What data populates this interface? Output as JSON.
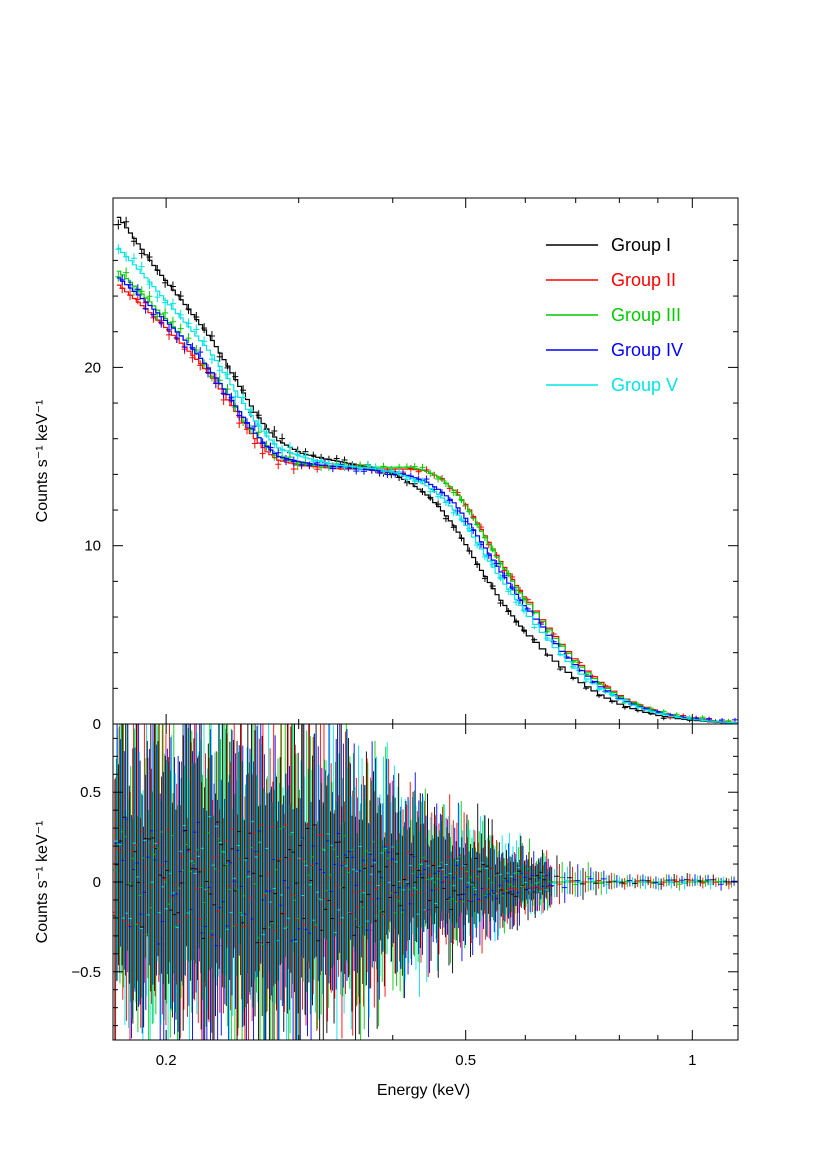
{
  "chart_data": [
    {
      "type": "line",
      "panel": "top",
      "xlabel": "",
      "ylabel": "Counts s⁻¹ keV⁻¹",
      "x_scale": "log",
      "xlim": [
        0.17,
        1.15
      ],
      "ylim": [
        0,
        29.5
      ],
      "y_ticks": [
        0,
        10,
        20
      ],
      "y_tick_labels": [
        "0",
        "10",
        "20"
      ],
      "legend": "top-right",
      "x": [
        0.17,
        0.18,
        0.19,
        0.2,
        0.21,
        0.22,
        0.23,
        0.24,
        0.25,
        0.26,
        0.27,
        0.28,
        0.3,
        0.32,
        0.34,
        0.36,
        0.38,
        0.4,
        0.42,
        0.44,
        0.46,
        0.48,
        0.5,
        0.52,
        0.55,
        0.58,
        0.6,
        0.63,
        0.66,
        0.7,
        0.75,
        0.8,
        0.85,
        0.9,
        0.95,
        1.0,
        1.05,
        1.1,
        1.15
      ],
      "series": [
        {
          "name": "Group I",
          "color": "#000000",
          "values": [
            28.7,
            27.3,
            25.9,
            24.7,
            23.6,
            22.5,
            21.4,
            20.1,
            18.8,
            17.6,
            16.6,
            15.9,
            15.2,
            14.9,
            14.7,
            14.5,
            14.3,
            14.0,
            13.5,
            12.9,
            12.1,
            11.1,
            9.9,
            8.7,
            7.1,
            5.8,
            5.0,
            4.1,
            3.3,
            2.4,
            1.6,
            1.05,
            0.7,
            0.45,
            0.3,
            0.2,
            0.12,
            0.07,
            0.05
          ]
        },
        {
          "name": "Group II",
          "color": "#ff0000",
          "values": [
            24.8,
            23.9,
            23.0,
            22.1,
            21.2,
            20.3,
            19.3,
            18.2,
            17.1,
            16.1,
            15.3,
            14.8,
            14.5,
            14.4,
            14.3,
            14.3,
            14.3,
            14.3,
            14.3,
            14.2,
            13.8,
            13.1,
            12.2,
            11.0,
            9.3,
            7.8,
            6.9,
            5.7,
            4.6,
            3.4,
            2.3,
            1.5,
            1.0,
            0.65,
            0.43,
            0.3,
            0.18,
            0.1,
            0.06
          ]
        },
        {
          "name": "Group III",
          "color": "#00cc00",
          "values": [
            25.6,
            24.6,
            23.6,
            22.6,
            21.6,
            20.6,
            19.6,
            18.5,
            17.4,
            16.4,
            15.6,
            15.0,
            14.6,
            14.5,
            14.4,
            14.4,
            14.4,
            14.4,
            14.4,
            14.2,
            13.8,
            13.1,
            12.1,
            10.9,
            9.2,
            7.7,
            6.8,
            5.6,
            4.5,
            3.3,
            2.2,
            1.45,
            0.95,
            0.62,
            0.4,
            0.28,
            0.17,
            0.1,
            0.06
          ]
        },
        {
          "name": "Group IV",
          "color": "#0000ff",
          "values": [
            25.2,
            24.3,
            23.4,
            22.5,
            21.6,
            20.6,
            19.6,
            18.5,
            17.4,
            16.4,
            15.6,
            15.0,
            14.7,
            14.5,
            14.4,
            14.3,
            14.2,
            14.1,
            13.9,
            13.6,
            13.1,
            12.4,
            11.4,
            10.3,
            8.7,
            7.3,
            6.4,
            5.3,
            4.2,
            3.1,
            2.05,
            1.35,
            0.9,
            0.58,
            0.38,
            0.26,
            0.16,
            0.09,
            0.05
          ]
        },
        {
          "name": "Group V",
          "color": "#00e5e5",
          "values": [
            26.9,
            25.8,
            24.7,
            23.6,
            22.6,
            21.6,
            20.6,
            19.4,
            18.2,
            17.1,
            16.2,
            15.5,
            15.0,
            14.7,
            14.5,
            14.4,
            14.3,
            14.1,
            13.8,
            13.4,
            12.8,
            12.0,
            11.0,
            9.9,
            8.3,
            7.0,
            6.1,
            5.0,
            4.0,
            2.9,
            1.95,
            1.3,
            0.85,
            0.55,
            0.36,
            0.25,
            0.15,
            0.09,
            0.05
          ]
        }
      ]
    },
    {
      "type": "scatter",
      "panel": "bottom",
      "xlabel": "Energy (keV)",
      "ylabel": "Counts s⁻¹ keV⁻¹",
      "x_scale": "log",
      "xlim": [
        0.17,
        1.15
      ],
      "ylim": [
        -0.88,
        0.88
      ],
      "x_ticks": [
        0.2,
        0.5,
        1
      ],
      "x_tick_labels": [
        "0.2",
        "0.5",
        "1"
      ],
      "y_ticks": [
        -0.5,
        0,
        0.5
      ],
      "y_tick_labels": [
        "−0.5",
        "0",
        "0.5"
      ],
      "residuals": "error bars with centered values scattered about 0; error bar half-height about 0.75 below 0.3 keV, shrinking to about 0.02 above 0.9 keV"
    }
  ]
}
